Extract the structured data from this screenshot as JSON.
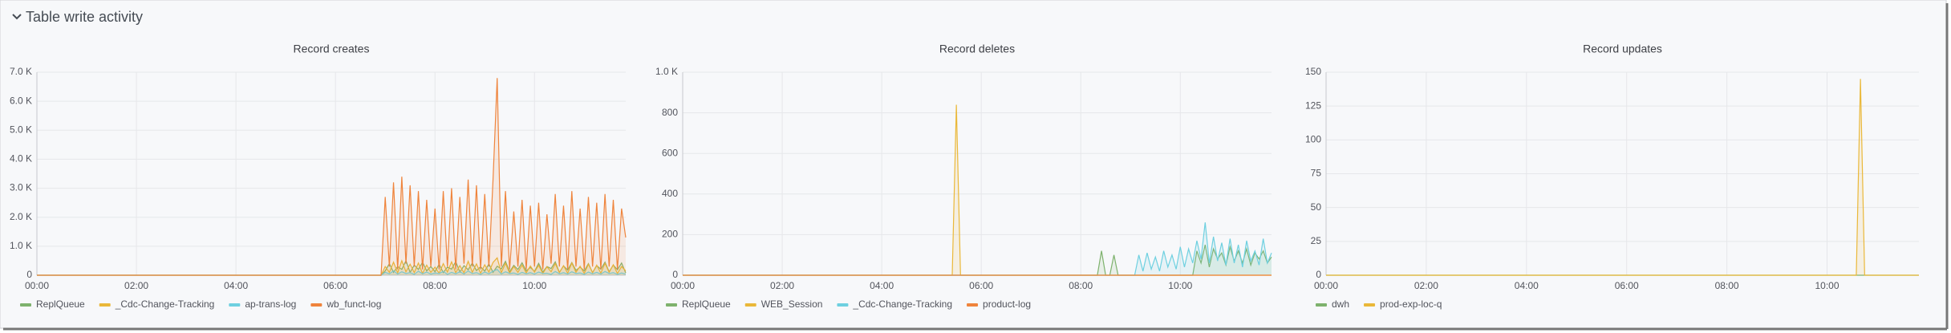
{
  "section_title": "Table write activity",
  "chart_data": [
    {
      "type": "line",
      "title": "Record creates",
      "x": [
        "00:00",
        "06:55",
        "07:00",
        "07:05",
        "07:10",
        "07:15",
        "07:20",
        "07:25",
        "07:30",
        "07:35",
        "07:40",
        "07:45",
        "07:50",
        "07:55",
        "08:00",
        "08:05",
        "08:10",
        "08:15",
        "08:20",
        "08:25",
        "08:30",
        "08:35",
        "08:40",
        "08:45",
        "08:50",
        "08:55",
        "09:00",
        "09:05",
        "09:10",
        "09:15",
        "09:20",
        "09:25",
        "09:30",
        "09:35",
        "09:40",
        "09:45",
        "09:50",
        "09:55",
        "10:00",
        "10:05",
        "10:10",
        "10:15",
        "10:20",
        "10:25",
        "10:30",
        "10:35",
        "10:40",
        "10:45",
        "10:50",
        "10:55",
        "11:00",
        "11:05",
        "11:10",
        "11:15",
        "11:20",
        "11:25",
        "11:30",
        "11:35",
        "11:40",
        "11:45",
        "11:50"
      ],
      "xlim": [
        "00:00",
        "11:50"
      ],
      "xticks": [
        "00:00",
        "02:00",
        "04:00",
        "06:00",
        "08:00",
        "10:00"
      ],
      "ylim": [
        0,
        7000
      ],
      "yticks": [
        {
          "value": 0,
          "label": "0"
        },
        {
          "value": 1000,
          "label": "1.0 K"
        },
        {
          "value": 2000,
          "label": "2.0 K"
        },
        {
          "value": 3000,
          "label": "3.0 K"
        },
        {
          "value": 4000,
          "label": "4.0 K"
        },
        {
          "value": 5000,
          "label": "5.0 K"
        },
        {
          "value": 6000,
          "label": "6.0 K"
        },
        {
          "value": 7000,
          "label": "7.0 K"
        }
      ],
      "grid": true,
      "series": [
        {
          "name": "ReplQueue",
          "color": "#7eb26d",
          "values": [
            0,
            0,
            150,
            400,
            100,
            300,
            200,
            500,
            100,
            350,
            200,
            450,
            150,
            300,
            120,
            380,
            90,
            280,
            210,
            470,
            110,
            330,
            190,
            420,
            160,
            290,
            140,
            390,
            100,
            310,
            220,
            480,
            120,
            340,
            200,
            430,
            150,
            270,
            130,
            410,
            110,
            300,
            230,
            460,
            100,
            320,
            180,
            440,
            170,
            280,
            150,
            400,
            90,
            330,
            210,
            450,
            120,
            350,
            190,
            420,
            80
          ]
        },
        {
          "name": "_Cdc-Change-Tracking",
          "color": "#eab839",
          "values": [
            0,
            0,
            300,
            100,
            450,
            80,
            500,
            120,
            380,
            90,
            420,
            60,
            350,
            100,
            280,
            70,
            400,
            110,
            460,
            90,
            330,
            80,
            480,
            100,
            390,
            70,
            360,
            110,
            440,
            600,
            90,
            410,
            70,
            300,
            100,
            350,
            80,
            320,
            110,
            340,
            60,
            290,
            120,
            400,
            90,
            330,
            70,
            420,
            100,
            310,
            60,
            380,
            90,
            350,
            70,
            410,
            100,
            360,
            60,
            300,
            150
          ]
        },
        {
          "name": "ap-trans-log",
          "color": "#6ed0e0",
          "values": [
            0,
            0,
            100,
            50,
            150,
            40,
            120,
            60,
            90,
            30,
            140,
            50,
            110,
            40,
            80,
            60,
            130,
            30,
            100,
            50,
            120,
            40,
            150,
            60,
            90,
            30,
            110,
            50,
            140,
            200,
            40,
            120,
            60,
            80,
            30,
            100,
            50,
            90,
            40,
            110,
            60,
            70,
            30,
            130,
            50,
            90,
            40,
            120,
            60,
            80,
            30,
            110,
            50,
            100,
            40,
            130,
            60,
            90,
            30,
            80,
            40
          ]
        },
        {
          "name": "wb_funct-log",
          "color": "#ef843c",
          "values": [
            0,
            0,
            2700,
            300,
            3200,
            200,
            3400,
            400,
            3100,
            300,
            2900,
            200,
            2600,
            300,
            2300,
            200,
            2900,
            300,
            3000,
            200,
            2700,
            400,
            3300,
            300,
            3100,
            200,
            2800,
            300,
            3300,
            6800,
            300,
            2900,
            200,
            2200,
            300,
            2600,
            200,
            2400,
            300,
            2500,
            200,
            2100,
            400,
            2800,
            300,
            2400,
            200,
            2900,
            300,
            2300,
            200,
            2700,
            300,
            2500,
            200,
            2800,
            300,
            2600,
            200,
            2300,
            1300
          ]
        }
      ]
    },
    {
      "type": "line",
      "title": "Record deletes",
      "x": [
        "00:00",
        "05:25",
        "05:30",
        "05:35",
        "08:20",
        "08:25",
        "08:30",
        "08:35",
        "08:40",
        "08:45",
        "09:00",
        "09:05",
        "09:10",
        "09:15",
        "09:20",
        "09:25",
        "09:30",
        "09:35",
        "09:40",
        "09:45",
        "09:50",
        "09:55",
        "10:00",
        "10:05",
        "10:10",
        "10:15",
        "10:20",
        "10:25",
        "10:30",
        "10:35",
        "10:40",
        "10:45",
        "10:50",
        "10:55",
        "11:00",
        "11:05",
        "11:10",
        "11:15",
        "11:20",
        "11:25",
        "11:30",
        "11:35",
        "11:40",
        "11:45",
        "11:50"
      ],
      "xlim": [
        "00:00",
        "11:50"
      ],
      "xticks": [
        "00:00",
        "02:00",
        "04:00",
        "06:00",
        "08:00",
        "10:00"
      ],
      "ylim": [
        0,
        1000
      ],
      "yticks": [
        0,
        200,
        400,
        600,
        800,
        {
          "value": 1000,
          "label": "1.0 K"
        }
      ],
      "grid": true,
      "series": [
        {
          "name": "ReplQueue",
          "color": "#7eb26d",
          "values": [
            0,
            0,
            0,
            0,
            0,
            120,
            0,
            0,
            100,
            0,
            0,
            0,
            0,
            0,
            0,
            0,
            0,
            0,
            0,
            0,
            0,
            0,
            0,
            0,
            0,
            0,
            120,
            60,
            150,
            40,
            130,
            80,
            110,
            50,
            140,
            70,
            120,
            60,
            130,
            50,
            110,
            80,
            120,
            60,
            90
          ]
        },
        {
          "name": "WEB_Session",
          "color": "#eab839",
          "values": [
            0,
            0,
            840,
            0,
            0,
            0,
            0,
            0,
            0,
            0,
            0,
            0,
            0,
            0,
            0,
            0,
            0,
            0,
            0,
            0,
            0,
            0,
            0,
            0,
            0,
            0,
            0,
            0,
            0,
            0,
            0,
            0,
            0,
            0,
            0,
            0,
            0,
            0,
            0,
            0,
            0,
            0,
            0,
            0,
            0
          ]
        },
        {
          "name": "_Cdc-Change-Tracking",
          "color": "#6ed0e0",
          "values": [
            0,
            0,
            0,
            0,
            0,
            0,
            0,
            0,
            0,
            0,
            0,
            0,
            100,
            20,
            110,
            30,
            90,
            20,
            120,
            40,
            100,
            30,
            140,
            40,
            130,
            60,
            170,
            80,
            260,
            60,
            190,
            70,
            160,
            50,
            180,
            60,
            150,
            40,
            170,
            70,
            120,
            50,
            180,
            60,
            110
          ]
        },
        {
          "name": "product-log",
          "color": "#ef843c",
          "values": [
            0,
            0,
            0,
            0,
            0,
            0,
            0,
            0,
            0,
            0,
            0,
            0,
            0,
            0,
            0,
            0,
            0,
            0,
            0,
            0,
            0,
            0,
            0,
            0,
            0,
            0,
            0,
            0,
            0,
            0,
            0,
            0,
            0,
            0,
            0,
            0,
            0,
            0,
            0,
            0,
            0,
            0,
            0,
            0,
            0
          ]
        }
      ]
    },
    {
      "type": "line",
      "title": "Record updates",
      "x": [
        "00:00",
        "10:35",
        "10:40",
        "10:45",
        "11:50"
      ],
      "xlim": [
        "00:00",
        "11:50"
      ],
      "xticks": [
        "00:00",
        "02:00",
        "04:00",
        "06:00",
        "08:00",
        "10:00"
      ],
      "ylim": [
        0,
        150
      ],
      "yticks": [
        0,
        25,
        50,
        75,
        100,
        125,
        150
      ],
      "grid": true,
      "series": [
        {
          "name": "dwh",
          "color": "#7eb26d",
          "values": [
            0,
            0,
            0,
            0,
            0
          ]
        },
        {
          "name": "prod-exp-loc-q",
          "color": "#eab839",
          "values": [
            0,
            0,
            145,
            0,
            0
          ]
        }
      ]
    }
  ]
}
